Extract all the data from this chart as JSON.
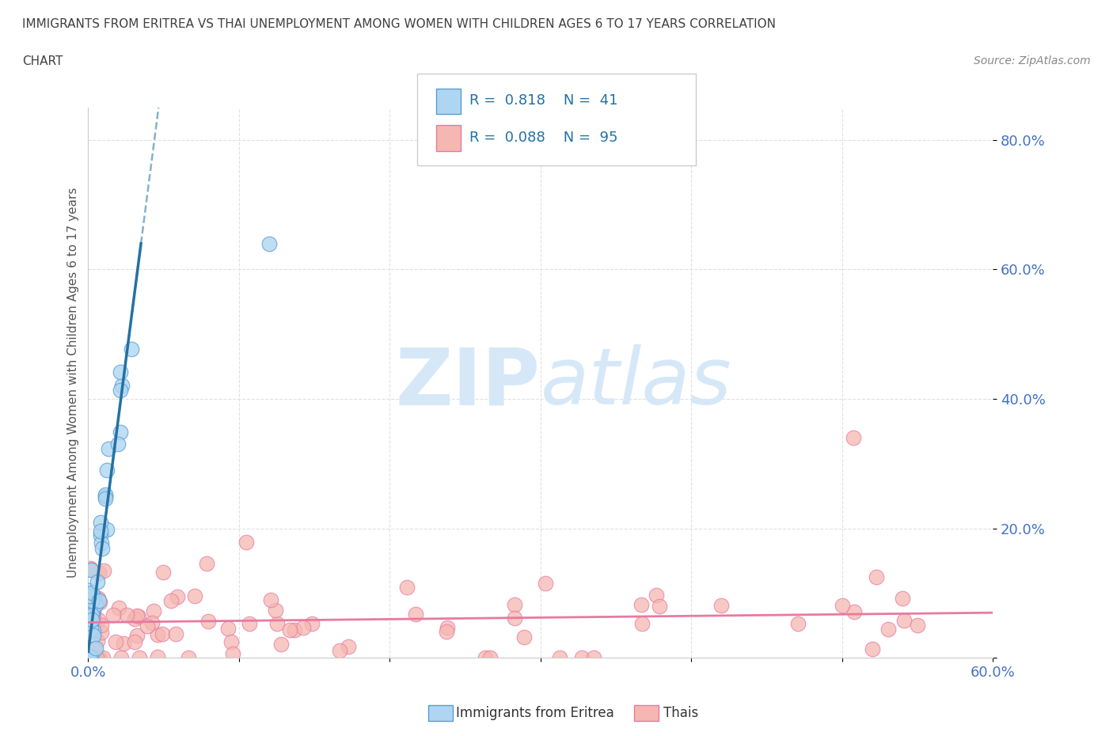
{
  "title_line1": "IMMIGRANTS FROM ERITREA VS THAI UNEMPLOYMENT AMONG WOMEN WITH CHILDREN AGES 6 TO 17 YEARS CORRELATION",
  "title_line2": "CHART",
  "source": "Source: ZipAtlas.com",
  "ylabel": "Unemployment Among Women with Children Ages 6 to 17 years",
  "xlim": [
    0.0,
    0.6
  ],
  "ylim": [
    0.0,
    0.85
  ],
  "xtick_positions": [
    0.0,
    0.1,
    0.2,
    0.3,
    0.4,
    0.5,
    0.6
  ],
  "xticklabels": [
    "0.0%",
    "",
    "",
    "",
    "",
    "",
    "60.0%"
  ],
  "ytick_positions": [
    0.0,
    0.2,
    0.4,
    0.6,
    0.8
  ],
  "yticklabels": [
    "",
    "20.0%",
    "40.0%",
    "60.0%",
    "80.0%"
  ],
  "eritrea_color": "#aed6f1",
  "eritrea_edge_color": "#5b9bd5",
  "thai_color": "#f5b7b1",
  "thai_edge_color": "#e87a9f",
  "eritrea_line_color": "#2471a3",
  "thai_line_color": "#e87a9f",
  "eritrea_R": 0.818,
  "eritrea_N": 41,
  "thai_R": 0.088,
  "thai_N": 95,
  "background_color": "#ffffff",
  "watermark_zip": "ZIP",
  "watermark_atlas": "atlas",
  "watermark_color": "#d6e8f7",
  "grid_color": "#e0e0e0",
  "tick_color": "#4472c4",
  "title_color": "#404040",
  "ylabel_color": "#555555",
  "source_color": "#888888",
  "legend_text_color": "#2471a3"
}
